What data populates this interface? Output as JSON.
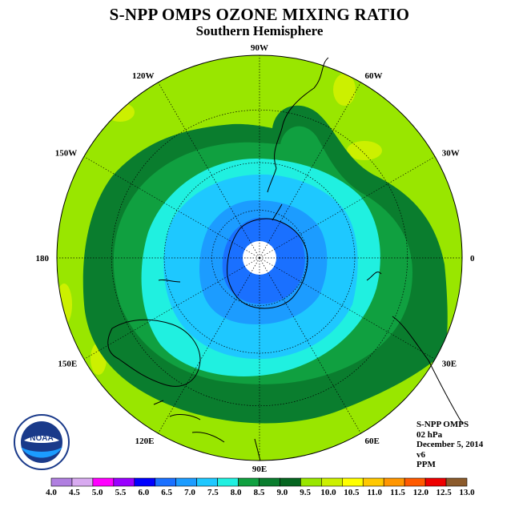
{
  "title": "S-NPP OMPS OZONE MIXING RATIO",
  "subtitle": "Southern Hemisphere",
  "info": {
    "instrument": "S-NPP OMPS",
    "level": "02 hPa",
    "date": "December 5, 2014",
    "version": "v6",
    "units": "PPM"
  },
  "logo": {
    "text": "NOAA",
    "icon": "noaa-logo-icon"
  },
  "longitude_labels": [
    {
      "text": "0",
      "lon": 0
    },
    {
      "text": "30W",
      "lon": -30
    },
    {
      "text": "60W",
      "lon": -60
    },
    {
      "text": "90W",
      "lon": -90
    },
    {
      "text": "120W",
      "lon": -120
    },
    {
      "text": "150W",
      "lon": -150
    },
    {
      "text": "180",
      "lon": 180
    },
    {
      "text": "150E",
      "lon": 150
    },
    {
      "text": "120E",
      "lon": 120
    },
    {
      "text": "90E",
      "lon": 90
    },
    {
      "text": "60E",
      "lon": 60
    },
    {
      "text": "30E",
      "lon": 30
    }
  ],
  "colorbar": {
    "ticks": [
      "4.0",
      "4.5",
      "5.0",
      "5.5",
      "6.0",
      "6.5",
      "7.0",
      "7.5",
      "8.0",
      "8.5",
      "9.0",
      "9.5",
      "10.0",
      "10.5",
      "11.0",
      "11.5",
      "12.0",
      "12.5",
      "13.0"
    ],
    "colors": [
      "#b07fe0",
      "#d8aaf0",
      "#ff00ff",
      "#9900ff",
      "#0000ff",
      "#1a70ff",
      "#1c9cff",
      "#1ec8ff",
      "#20f0e0",
      "#10a040",
      "#0a7d2e",
      "#066620",
      "#99e600",
      "#ccf000",
      "#ffff00",
      "#ffc800",
      "#ff9600",
      "#ff5a00",
      "#ee0000",
      "#8b5a2b"
    ]
  },
  "colors": {
    "band_outer": "#99e600",
    "band_light_green": "#0a7d2e",
    "band_mid_green": "#10a040",
    "band_cyan": "#20f0e0",
    "band_sky": "#1ec8ff",
    "band_blue": "#1c9cff",
    "band_blue2": "#1a70ff",
    "band_yellow_green": "#ccf000"
  }
}
